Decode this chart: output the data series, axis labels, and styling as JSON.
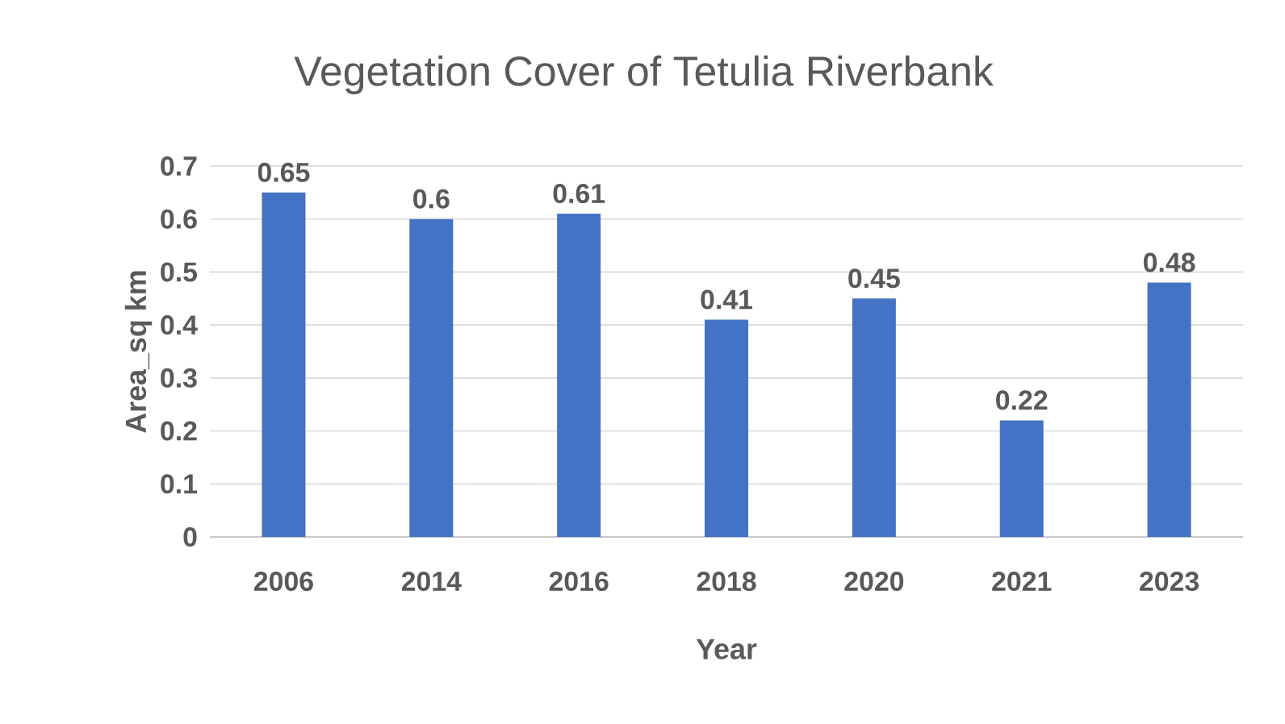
{
  "chart_data": {
    "type": "bar",
    "title": "Vegetation Cover of Tetulia Riverbank",
    "xlabel": "Year",
    "ylabel": "Area_sq km",
    "categories": [
      "2006",
      "2014",
      "2016",
      "2018",
      "2020",
      "2021",
      "2023"
    ],
    "values": [
      0.65,
      0.6,
      0.61,
      0.41,
      0.45,
      0.22,
      0.48
    ],
    "color": "#4472c4",
    "ylim": [
      0,
      0.7
    ],
    "yticks": [
      0,
      0.1,
      0.2,
      0.3,
      0.4,
      0.5,
      0.6,
      0.7
    ],
    "grid": "y",
    "data_labels": true
  }
}
